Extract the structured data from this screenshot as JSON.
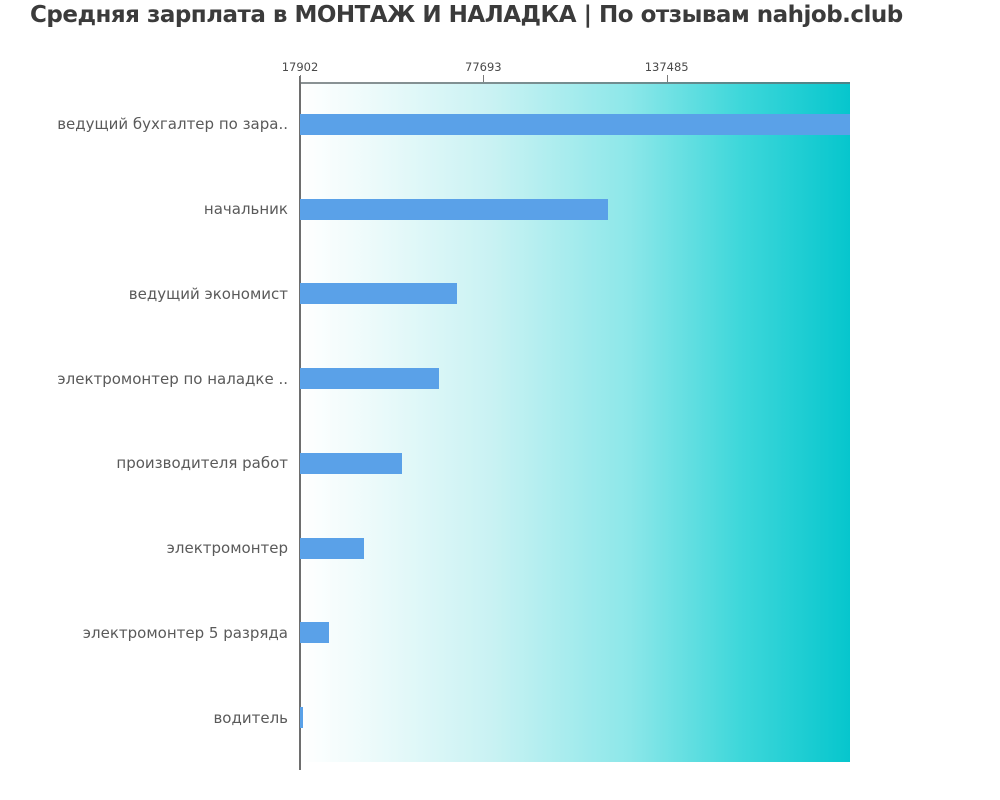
{
  "title": "Средняя зарплата в МОНТАЖ И НАЛАДКА | По отзывам nahjob.club",
  "chart_data": {
    "type": "bar",
    "orientation": "horizontal",
    "title": "Средняя зарплата в МОНТАЖ И НАЛАДКА | По отзывам nahjob.club",
    "categories": [
      "ведущий бухгалтер по зара..",
      "начальник",
      "ведущий экономист",
      "электромонтер по наладке ..",
      "производителя работ",
      "электромонтер",
      "электромонтер 5 разряда",
      "водитель"
    ],
    "values": [
      197276,
      118300,
      69100,
      63200,
      51200,
      38800,
      27400,
      17902
    ],
    "xlabel": "",
    "ylabel": "",
    "axis": {
      "min": 17902,
      "max": 197276,
      "ticks": [
        17902,
        77693,
        137485
      ],
      "tick_labels": [
        "17902",
        "77693",
        "137485"
      ],
      "position": "top"
    },
    "grid": false,
    "legend": null,
    "colors": {
      "bar": "#5aa1e8",
      "plot_gradient_left": "#ffffff",
      "plot_gradient_right": "#06c6cd",
      "axis_line": "#6e6e6e",
      "category_label": "#5a5a5a",
      "tick_label": "#4a4a4a",
      "title_text": "#3b3b3b"
    }
  }
}
